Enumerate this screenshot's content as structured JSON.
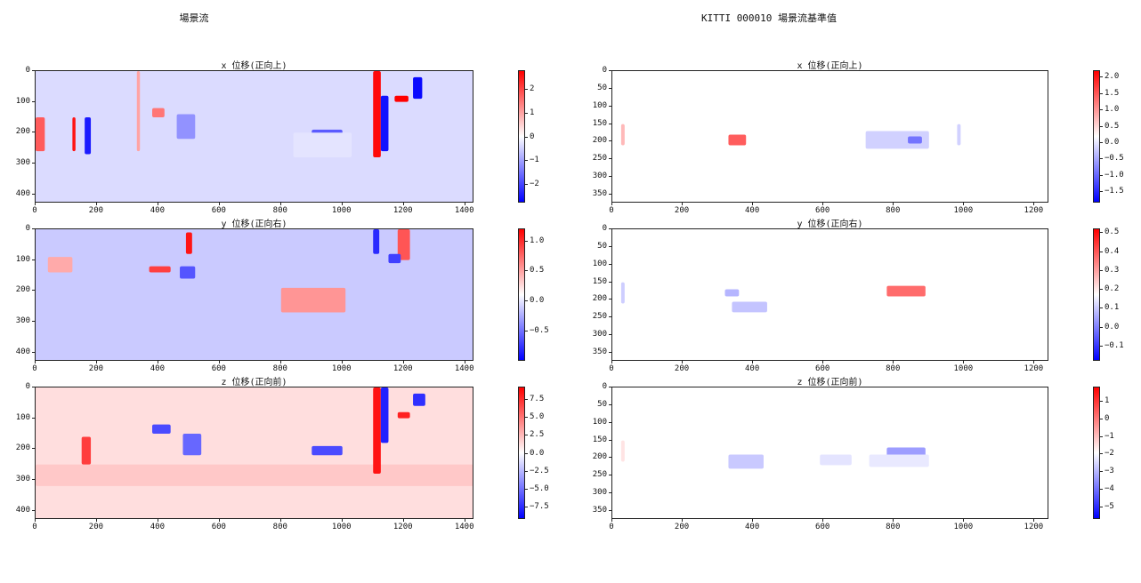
{
  "figure": {
    "left_title": "場景流",
    "right_title": "KITTI 000010 場景流基準值"
  },
  "chart_data": [
    {
      "type": "heatmap",
      "column": "left",
      "title": "x 位移(正向上)",
      "xlim": [
        0,
        1430
      ],
      "ylim": [
        430,
        0
      ],
      "x_ticks": [
        "0",
        "200",
        "400",
        "600",
        "800",
        "1000",
        "1200",
        "1400"
      ],
      "y_ticks": [
        "0",
        "100",
        "200",
        "300",
        "400"
      ],
      "colorbar": {
        "range": [
          -2.8,
          2.8
        ],
        "ticks": [
          "2",
          "1",
          "0",
          "−1",
          "−2"
        ],
        "tick_values": [
          2,
          1,
          0,
          -1,
          -2
        ],
        "colormap": "bwr"
      },
      "features": [
        {
          "x": [
            120,
            130
          ],
          "y": [
            150,
            260
          ],
          "v": 2.6
        },
        {
          "x": [
            160,
            180
          ],
          "y": [
            150,
            270
          ],
          "v": -2.5
        },
        {
          "x": [
            0,
            30
          ],
          "y": [
            150,
            260
          ],
          "v": 1.8
        },
        {
          "x": [
            380,
            420
          ],
          "y": [
            120,
            150
          ],
          "v": 1.5
        },
        {
          "x": [
            460,
            520
          ],
          "y": [
            140,
            220
          ],
          "v": -1.2
        },
        {
          "x": [
            330,
            340
          ],
          "y": [
            0,
            260
          ],
          "v": 1.0
        },
        {
          "x": [
            1100,
            1125
          ],
          "y": [
            0,
            280
          ],
          "v": 2.7
        },
        {
          "x": [
            1125,
            1150
          ],
          "y": [
            80,
            260
          ],
          "v": -2.6
        },
        {
          "x": [
            1170,
            1215
          ],
          "y": [
            80,
            100
          ],
          "v": 2.8
        },
        {
          "x": [
            1230,
            1260
          ],
          "y": [
            20,
            90
          ],
          "v": -2.7
        },
        {
          "x": [
            900,
            1000
          ],
          "y": [
            190,
            220
          ],
          "v": -1.8
        },
        {
          "x": [
            840,
            1030
          ],
          "y": [
            200,
            280
          ],
          "v": -0.3
        }
      ],
      "background": -0.4
    },
    {
      "type": "heatmap",
      "column": "left",
      "title": "y 位移(正向右)",
      "xlim": [
        0,
        1430
      ],
      "ylim": [
        430,
        0
      ],
      "x_ticks": [
        "0",
        "200",
        "400",
        "600",
        "800",
        "1000",
        "1200",
        "1400"
      ],
      "y_ticks": [
        "0",
        "100",
        "200",
        "300",
        "400"
      ],
      "colorbar": {
        "range": [
          -1.0,
          1.2
        ],
        "ticks": [
          "1.0",
          "0.5",
          "0.0",
          "−0.5"
        ],
        "tick_values": [
          1.0,
          0.5,
          0.0,
          -0.5
        ],
        "colormap": "bwr"
      },
      "features": [
        {
          "x": [
            800,
            1010
          ],
          "y": [
            190,
            270
          ],
          "v": 0.5
        },
        {
          "x": [
            490,
            510
          ],
          "y": [
            10,
            80
          ],
          "v": 1.1
        },
        {
          "x": [
            1100,
            1120
          ],
          "y": [
            0,
            80
          ],
          "v": -1.0
        },
        {
          "x": [
            1180,
            1220
          ],
          "y": [
            0,
            100
          ],
          "v": 0.8
        },
        {
          "x": [
            1150,
            1190
          ],
          "y": [
            80,
            110
          ],
          "v": -0.9
        },
        {
          "x": [
            370,
            440
          ],
          "y": [
            120,
            140
          ],
          "v": 0.9
        },
        {
          "x": [
            470,
            520
          ],
          "y": [
            120,
            160
          ],
          "v": -0.8
        },
        {
          "x": [
            40,
            120
          ],
          "y": [
            90,
            140
          ],
          "v": 0.4
        }
      ],
      "background": -0.25
    },
    {
      "type": "heatmap",
      "column": "left",
      "title": "z 位移(正向前)",
      "xlim": [
        0,
        1430
      ],
      "ylim": [
        430,
        0
      ],
      "x_ticks": [
        "0",
        "200",
        "400",
        "600",
        "800",
        "1000",
        "1200",
        "1400"
      ],
      "y_ticks": [
        "0",
        "100",
        "200",
        "300",
        "400"
      ],
      "colorbar": {
        "range": [
          -9.2,
          9.2
        ],
        "ticks": [
          "7.5",
          "5.0",
          "2.5",
          "0.0",
          "−2.5",
          "−5.0",
          "−7.5"
        ],
        "tick_values": [
          7.5,
          5.0,
          2.5,
          0.0,
          -2.5,
          -5.0,
          -7.5
        ],
        "colormap": "bwr"
      },
      "features": [
        {
          "x": [
            0,
            1430
          ],
          "y": [
            250,
            320
          ],
          "v": 2.0
        },
        {
          "x": [
            1100,
            1125
          ],
          "y": [
            0,
            280
          ],
          "v": 8.5
        },
        {
          "x": [
            1125,
            1150
          ],
          "y": [
            0,
            180
          ],
          "v": -8.0
        },
        {
          "x": [
            1180,
            1220
          ],
          "y": [
            80,
            100
          ],
          "v": 8.0
        },
        {
          "x": [
            1230,
            1270
          ],
          "y": [
            20,
            60
          ],
          "v": -7.5
        },
        {
          "x": [
            900,
            1000
          ],
          "y": [
            190,
            220
          ],
          "v": -6.5
        },
        {
          "x": [
            150,
            180
          ],
          "y": [
            160,
            250
          ],
          "v": 7.0
        },
        {
          "x": [
            380,
            440
          ],
          "y": [
            120,
            150
          ],
          "v": -6.5
        },
        {
          "x": [
            480,
            540
          ],
          "y": [
            150,
            220
          ],
          "v": -5.5
        }
      ],
      "background": 1.2
    },
    {
      "type": "heatmap",
      "column": "right",
      "title": "x 位移(正向上)",
      "xlim": [
        0,
        1242
      ],
      "ylim": [
        375,
        0
      ],
      "x_ticks": [
        "0",
        "200",
        "400",
        "600",
        "800",
        "1000",
        "1200"
      ],
      "y_ticks": [
        "0",
        "50",
        "100",
        "150",
        "200",
        "250",
        "300",
        "350"
      ],
      "colorbar": {
        "range": [
          -1.85,
          2.2
        ],
        "ticks": [
          "2.0",
          "1.5",
          "1.0",
          "0.5",
          "0.0",
          "−0.5",
          "−1.0",
          "−1.5"
        ],
        "tick_values": [
          2.0,
          1.5,
          1.0,
          0.5,
          0.0,
          -0.5,
          -1.0,
          -1.5
        ],
        "colormap": "bwr"
      },
      "features": [
        {
          "x": [
            720,
            900
          ],
          "y": [
            170,
            220
          ],
          "v": -0.4
        },
        {
          "x": [
            840,
            880
          ],
          "y": [
            185,
            205
          ],
          "v": -1.2
        },
        {
          "x": [
            330,
            380
          ],
          "y": [
            180,
            210
          ],
          "v": 1.4
        },
        {
          "x": [
            25,
            35
          ],
          "y": [
            150,
            210
          ],
          "v": 0.6
        },
        {
          "x": [
            980,
            990
          ],
          "y": [
            150,
            210
          ],
          "v": -0.4
        }
      ],
      "background": 0.0
    },
    {
      "type": "heatmap",
      "column": "right",
      "title": "y 位移(正向右)",
      "xlim": [
        0,
        1242
      ],
      "ylim": [
        375,
        0
      ],
      "x_ticks": [
        "0",
        "200",
        "400",
        "600",
        "800",
        "1000",
        "1200"
      ],
      "y_ticks": [
        "0",
        "50",
        "100",
        "150",
        "200",
        "250",
        "300",
        "350"
      ],
      "colorbar": {
        "range": [
          -0.18,
          0.52
        ],
        "ticks": [
          "0.5",
          "0.4",
          "0.3",
          "0.2",
          "0.1",
          "0.0",
          "−0.1"
        ],
        "tick_values": [
          0.5,
          0.4,
          0.3,
          0.2,
          0.1,
          0.0,
          -0.1
        ],
        "colormap": "bwr"
      },
      "features": [
        {
          "x": [
            780,
            890
          ],
          "y": [
            160,
            190
          ],
          "v": 0.3
        },
        {
          "x": [
            340,
            440
          ],
          "y": [
            205,
            235
          ],
          "v": -0.12
        },
        {
          "x": [
            320,
            360
          ],
          "y": [
            170,
            190
          ],
          "v": -0.15
        },
        {
          "x": [
            25,
            35
          ],
          "y": [
            150,
            210
          ],
          "v": -0.1
        }
      ],
      "background": 0.0
    },
    {
      "type": "heatmap",
      "column": "right",
      "title": "z 位移(正向前)",
      "xlim": [
        0,
        1242
      ],
      "ylim": [
        375,
        0
      ],
      "x_ticks": [
        "0",
        "200",
        "400",
        "600",
        "800",
        "1000",
        "1200"
      ],
      "y_ticks": [
        "0",
        "50",
        "100",
        "150",
        "200",
        "250",
        "300",
        "350"
      ],
      "colorbar": {
        "range": [
          -5.7,
          1.8
        ],
        "ticks": [
          "1",
          "0",
          "−1",
          "−2",
          "−3",
          "−4",
          "−5"
        ],
        "tick_values": [
          1,
          0,
          -1,
          -2,
          -3,
          -4,
          -5
        ],
        "colormap": "bwr"
      },
      "features": [
        {
          "x": [
            330,
            430
          ],
          "y": [
            190,
            230
          ],
          "v": -1.2
        },
        {
          "x": [
            590,
            680
          ],
          "y": [
            190,
            220
          ],
          "v": -0.6
        },
        {
          "x": [
            780,
            890
          ],
          "y": [
            170,
            200
          ],
          "v": -2.2
        },
        {
          "x": [
            730,
            900
          ],
          "y": [
            190,
            225
          ],
          "v": -0.5
        },
        {
          "x": [
            25,
            35
          ],
          "y": [
            150,
            210
          ],
          "v": 0.6
        }
      ],
      "background": 0.0
    }
  ]
}
